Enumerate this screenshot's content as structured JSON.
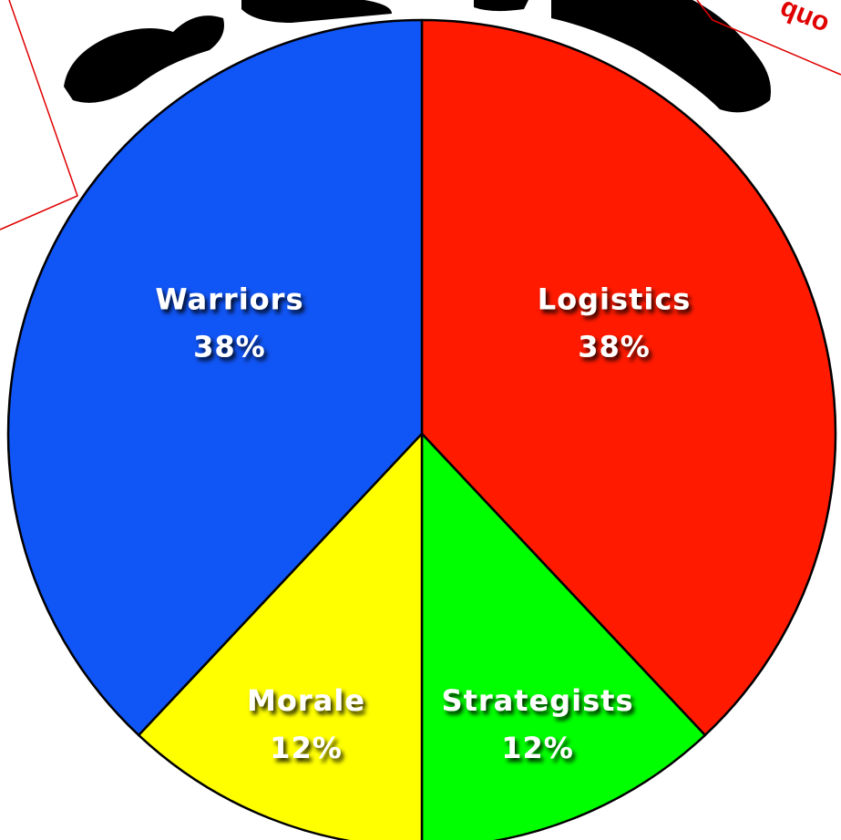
{
  "chart_data": {
    "type": "pie",
    "annotation": "quo",
    "categories": [
      "Logistics",
      "Strategists",
      "Morale",
      "Warriors"
    ],
    "values": [
      38,
      12,
      12,
      38
    ],
    "value_labels": [
      "38%",
      "12%",
      "12%",
      "38%"
    ],
    "colors": [
      "#ff1a00",
      "#00ff00",
      "#ffff00",
      "#1055f5"
    ]
  }
}
